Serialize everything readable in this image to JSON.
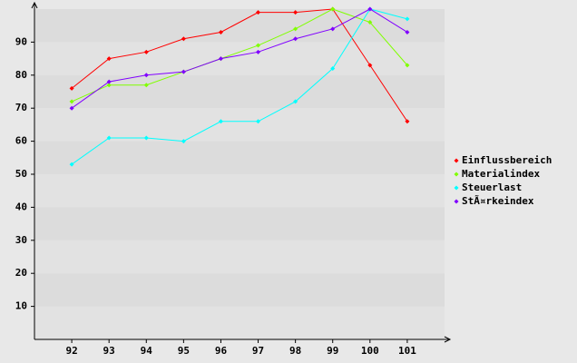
{
  "chart_data": {
    "type": "line",
    "categories": [
      "92",
      "93",
      "94",
      "95",
      "96",
      "97",
      "98",
      "99",
      "100",
      "101"
    ],
    "series": [
      {
        "name": "Einflussbereich",
        "color": "#ff0000",
        "values": [
          76,
          85,
          87,
          91,
          93,
          99,
          99,
          100,
          83,
          66
        ]
      },
      {
        "name": "Materialindex",
        "color": "#80ff00",
        "values": [
          72,
          77,
          77,
          81,
          85,
          89,
          94,
          100,
          96,
          83
        ]
      },
      {
        "name": "Steuerlast",
        "color": "#00ffff",
        "values": [
          53,
          61,
          61,
          60,
          66,
          66,
          72,
          82,
          100,
          97
        ]
      },
      {
        "name": "StÃ¤rkeindex",
        "color": "#8000ff",
        "values": [
          70,
          78,
          80,
          81,
          85,
          87,
          91,
          94,
          100,
          93
        ]
      }
    ],
    "ylim": [
      0,
      100
    ],
    "yticks": [
      10,
      20,
      30,
      40,
      50,
      60,
      70,
      80,
      90
    ],
    "grid": true,
    "legend": "right"
  }
}
